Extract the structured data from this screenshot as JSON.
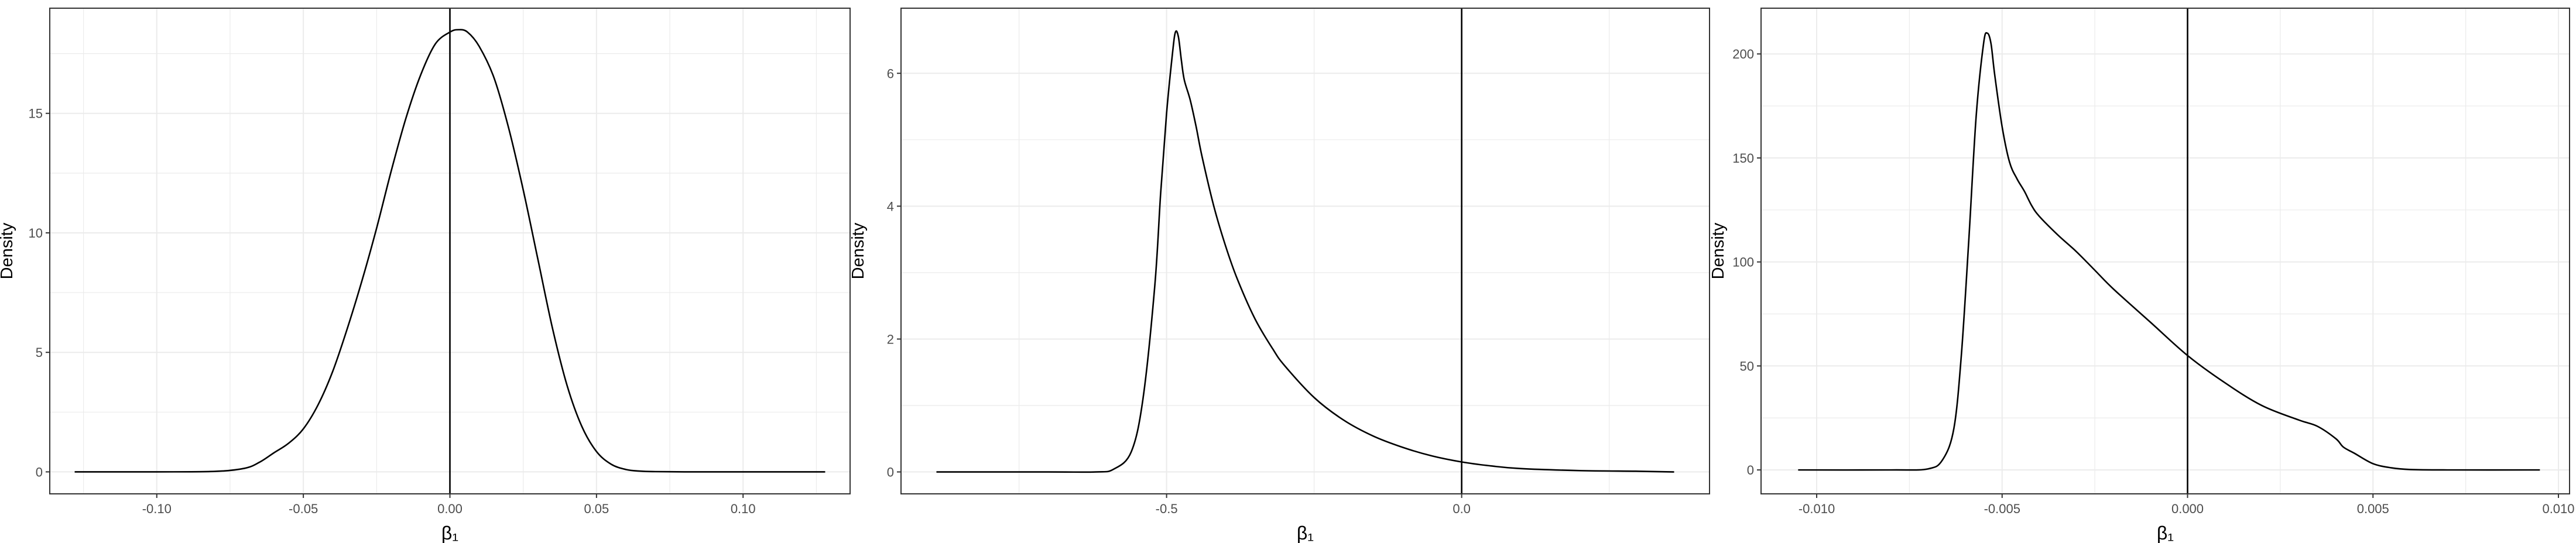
{
  "chart_data": [
    {
      "type": "line",
      "title": "",
      "xlabel": "β₁",
      "ylabel": "Density",
      "xlim": [
        -0.1365,
        0.1365
      ],
      "ylim": [
        -0.92,
        19.4
      ],
      "xticks": [
        -0.1,
        -0.05,
        0.0,
        0.05,
        0.1
      ],
      "xtick_labels": [
        "-0.10",
        "-0.05",
        "0.00",
        "0.05",
        "0.10"
      ],
      "yticks": [
        0,
        5,
        10,
        15
      ],
      "ytick_labels": [
        "0",
        "5",
        "10",
        "15"
      ],
      "vline": 0,
      "grid": true,
      "series": [
        {
          "x": [
            -0.128,
            -0.1,
            -0.08,
            -0.07,
            -0.065,
            -0.06,
            -0.055,
            -0.05,
            -0.045,
            -0.04,
            -0.035,
            -0.03,
            -0.025,
            -0.02,
            -0.015,
            -0.01,
            -0.005,
            0.0,
            0.003,
            0.006,
            0.01,
            0.015,
            0.02,
            0.025,
            0.03,
            0.035,
            0.04,
            0.045,
            0.05,
            0.055,
            0.06,
            0.065,
            0.07,
            0.08,
            0.1,
            0.128
          ],
          "y": [
            0,
            0,
            0.02,
            0.15,
            0.4,
            0.8,
            1.2,
            1.8,
            2.8,
            4.2,
            6.0,
            8.0,
            10.2,
            12.6,
            14.8,
            16.6,
            17.9,
            18.4,
            18.5,
            18.4,
            17.8,
            16.5,
            14.4,
            11.8,
            8.9,
            6.0,
            3.6,
            1.9,
            0.85,
            0.32,
            0.1,
            0.03,
            0.01,
            0,
            0,
            0
          ]
        }
      ]
    },
    {
      "type": "line",
      "title": "",
      "xlabel": "β₁",
      "ylabel": "Density",
      "xlim": [
        -0.95,
        0.42
      ],
      "ylim": [
        -0.33,
        6.98
      ],
      "xticks": [
        -0.5,
        0.0
      ],
      "xtick_labels": [
        "-0.5",
        "0.0"
      ],
      "yticks": [
        0,
        2,
        4,
        6
      ],
      "ytick_labels": [
        "0",
        "2",
        "4",
        "6"
      ],
      "vline": 0,
      "grid": true,
      "series": [
        {
          "x": [
            -0.89,
            -0.7,
            -0.62,
            -0.59,
            -0.56,
            -0.54,
            -0.52,
            -0.51,
            -0.5,
            -0.49,
            -0.485,
            -0.48,
            -0.475,
            -0.47,
            -0.46,
            -0.45,
            -0.44,
            -0.42,
            -0.4,
            -0.38,
            -0.35,
            -0.32,
            -0.3,
            -0.25,
            -0.2,
            -0.15,
            -0.1,
            -0.05,
            0.0,
            0.05,
            0.1,
            0.2,
            0.3,
            0.36
          ],
          "y": [
            0,
            0,
            0,
            0.04,
            0.3,
            1.1,
            2.8,
            4.2,
            5.4,
            6.3,
            6.62,
            6.55,
            6.2,
            5.9,
            5.6,
            5.2,
            4.75,
            4.0,
            3.4,
            2.9,
            2.3,
            1.85,
            1.6,
            1.12,
            0.78,
            0.54,
            0.37,
            0.24,
            0.15,
            0.09,
            0.05,
            0.02,
            0.01,
            0
          ]
        }
      ]
    },
    {
      "type": "line",
      "title": "",
      "xlabel": "β₁",
      "ylabel": "Density",
      "xlim": [
        -0.0115,
        0.0103
      ],
      "ylim": [
        -11.5,
        222
      ],
      "xticks": [
        -0.01,
        -0.005,
        0.0,
        0.005,
        0.01
      ],
      "xtick_labels": [
        "-0.010",
        "-0.005",
        "0.000",
        "0.005",
        "0.010"
      ],
      "yticks": [
        0,
        50,
        100,
        150,
        200
      ],
      "ytick_labels": [
        "0",
        "50",
        "100",
        "150",
        "200"
      ],
      "vline": 0,
      "grid": true,
      "series": [
        {
          "x": [
            -0.0105,
            -0.008,
            -0.007,
            -0.0066,
            -0.0063,
            -0.0061,
            -0.0059,
            -0.0057,
            -0.0055,
            -0.0054,
            -0.0053,
            -0.0052,
            -0.005,
            -0.0048,
            -0.0046,
            -0.0044,
            -0.0042,
            -0.004,
            -0.0035,
            -0.003,
            -0.0025,
            -0.002,
            -0.001,
            0.0,
            0.001,
            0.002,
            0.003,
            0.0035,
            0.004,
            0.0042,
            0.0045,
            0.005,
            0.0055,
            0.006,
            0.007,
            0.0095
          ],
          "y": [
            0,
            0,
            0.5,
            5,
            20,
            55,
            110,
            170,
            205,
            210,
            205,
            190,
            165,
            148,
            140,
            134,
            127,
            122,
            113,
            105,
            96,
            87,
            71,
            55,
            42,
            31,
            24,
            21,
            15,
            11,
            8,
            3,
            1,
            0.2,
            0,
            0
          ]
        }
      ]
    }
  ]
}
